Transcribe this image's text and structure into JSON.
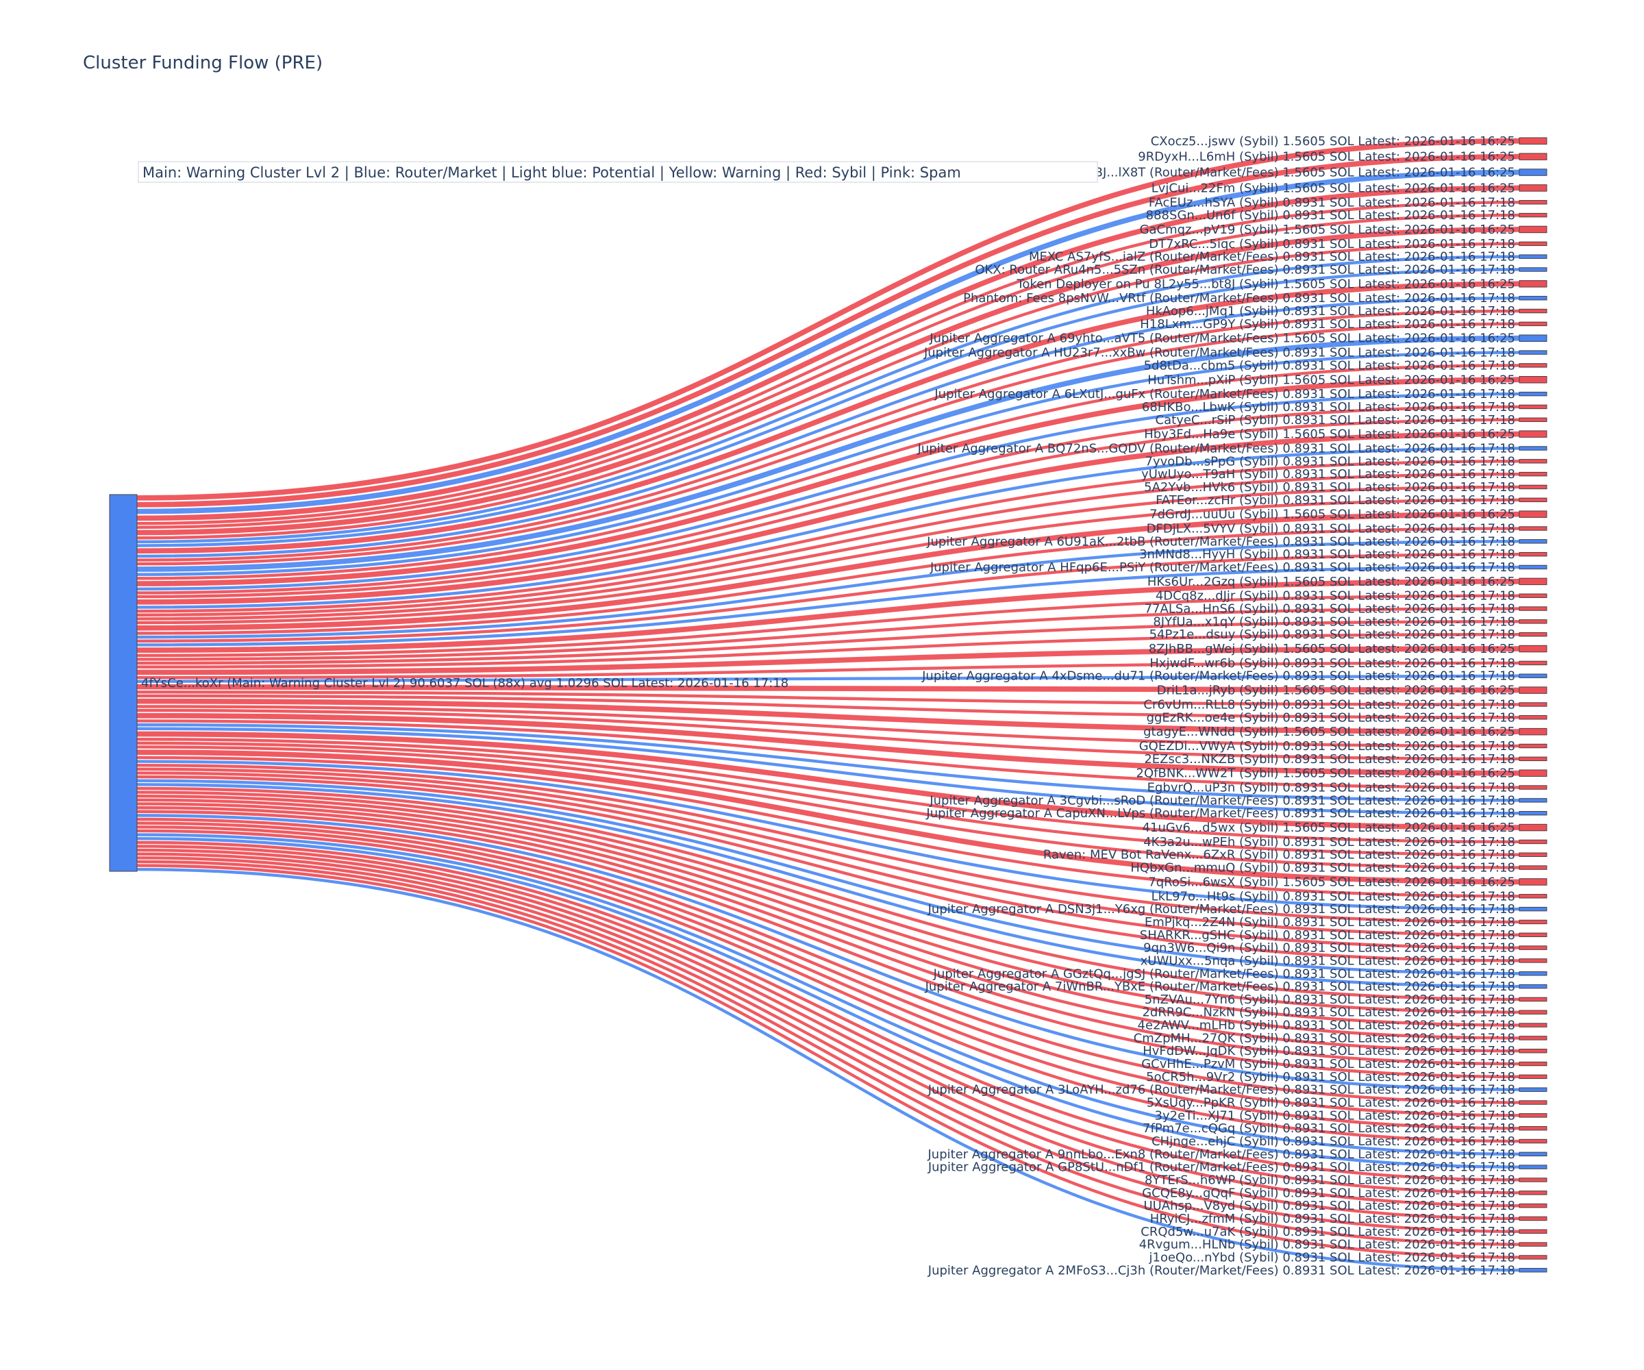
{
  "chart_data": {
    "type": "sankey",
    "title": "Cluster Funding Flow (PRE)",
    "legend_note": "Main: Warning Cluster Lvl 2  |  Blue: Router/Market | Light blue: Potential | Yellow: Warning | Red: Sybil | Pink: Spam",
    "colors": {
      "router": "#4a84f0",
      "sybil": "#ee4f57",
      "link_router": "#5b92f3",
      "link_sybil": "#ef5a61",
      "text": "#2a3f5f"
    },
    "source": {
      "label": "4fYsCe...koXr (Main: Warning Cluster Lvl 2) 90.6037 SOL (88x) avg 1.0296 SOL Latest: 2026-01-16 17:18",
      "value": 90.6037,
      "category": "router"
    },
    "targets": [
      {
        "label": "CXocz5...jswv (Sybil) 1.5605 SOL Latest: 2026-01-16 16:25",
        "value": 1.5605,
        "category": "sybil"
      },
      {
        "label": "9RDyxH...L6mH (Sybil) 1.5605 SOL Latest: 2026-01-16 16:25",
        "value": 1.5605,
        "category": "sybil"
      },
      {
        "label": "Jupiter Aggregator A 6h9nBJ...lX8T (Router/Market/Fees) 1.5605 SOL Latest: 2026-01-16 16:25",
        "value": 1.5605,
        "category": "router"
      },
      {
        "label": "LvjCui...22Fm (Sybil) 1.5605 SOL Latest: 2026-01-16 16:25",
        "value": 1.5605,
        "category": "sybil"
      },
      {
        "label": "FAcEUz...hSYA (Sybil) 0.8931 SOL Latest: 2026-01-16 17:18",
        "value": 0.8931,
        "category": "sybil"
      },
      {
        "label": "888SGn...Un6f (Sybil) 0.8931 SOL Latest: 2026-01-16 17:18",
        "value": 0.8931,
        "category": "sybil"
      },
      {
        "label": "GaCmqz...pV19 (Sybil) 1.5605 SOL Latest: 2026-01-16 16:25",
        "value": 1.5605,
        "category": "sybil"
      },
      {
        "label": "DT7xRC...5iqc (Sybil) 0.8931 SOL Latest: 2026-01-16 17:18",
        "value": 0.8931,
        "category": "sybil"
      },
      {
        "label": "MEXC AS7yfS...ialZ (Router/Market/Fees) 0.8931 SOL Latest: 2026-01-16 17:18",
        "value": 0.8931,
        "category": "router"
      },
      {
        "label": "OKX: Router ARu4n5...5SZn (Router/Market/Fees) 0.8931 SOL Latest: 2026-01-16 17:18",
        "value": 0.8931,
        "category": "router"
      },
      {
        "label": "Token Deployer on Pu 8L2y55...bt8J (Sybil) 1.5605 SOL Latest: 2026-01-16 16:25",
        "value": 1.5605,
        "category": "sybil"
      },
      {
        "label": "Phantom: Fees 8psNvW...VRtf (Router/Market/Fees) 0.8931 SOL Latest: 2026-01-16 17:18",
        "value": 0.8931,
        "category": "router"
      },
      {
        "label": "HkAop6...jMq1 (Sybil) 0.8931 SOL Latest: 2026-01-16 17:18",
        "value": 0.8931,
        "category": "sybil"
      },
      {
        "label": "H18Lxm...GP9Y (Sybil) 0.8931 SOL Latest: 2026-01-16 17:18",
        "value": 0.8931,
        "category": "sybil"
      },
      {
        "label": "Jupiter Aggregator A 69yhto...aVT5 (Router/Market/Fees) 1.5605 SOL Latest: 2026-01-16 16:25",
        "value": 1.5605,
        "category": "router"
      },
      {
        "label": "Jupiter Aggregator A HU23r7...xxBw (Router/Market/Fees) 0.8931 SOL Latest: 2026-01-16 17:18",
        "value": 0.8931,
        "category": "router"
      },
      {
        "label": "5d8tDa...cbm5 (Sybil) 0.8931 SOL Latest: 2026-01-16 17:18",
        "value": 0.8931,
        "category": "sybil"
      },
      {
        "label": "HuTshm...pXiP (Sybil) 1.5605 SOL Latest: 2026-01-16 16:25",
        "value": 1.5605,
        "category": "sybil"
      },
      {
        "label": "Jupiter Aggregator A 6LXutJ...guFx (Router/Market/Fees) 0.8931 SOL Latest: 2026-01-16 17:18",
        "value": 0.8931,
        "category": "router"
      },
      {
        "label": "68HKBo...LbwK (Sybil) 0.8931 SOL Latest: 2026-01-16 17:18",
        "value": 0.8931,
        "category": "sybil"
      },
      {
        "label": "CatyeC...rSiP (Sybil) 0.8931 SOL Latest: 2026-01-16 17:18",
        "value": 0.8931,
        "category": "sybil"
      },
      {
        "label": "Hby3Fd...Ha9e (Sybil) 1.5605 SOL Latest: 2026-01-16 16:25",
        "value": 1.5605,
        "category": "sybil"
      },
      {
        "label": "Jupiter Aggregator A BQ72nS...GQDV (Router/Market/Fees) 0.8931 SOL Latest: 2026-01-16 17:18",
        "value": 0.8931,
        "category": "router"
      },
      {
        "label": "7yvoDb...sPpG (Sybil) 0.8931 SOL Latest: 2026-01-16 17:18",
        "value": 0.8931,
        "category": "sybil"
      },
      {
        "label": "yUwUyo...T9aH (Sybil) 0.8931 SOL Latest: 2026-01-16 17:18",
        "value": 0.8931,
        "category": "sybil"
      },
      {
        "label": "5A2Yvb...HVk6 (Sybil) 0.8931 SOL Latest: 2026-01-16 17:18",
        "value": 0.8931,
        "category": "sybil"
      },
      {
        "label": "FATEor...zcHr (Sybil) 0.8931 SOL Latest: 2026-01-16 17:18",
        "value": 0.8931,
        "category": "sybil"
      },
      {
        "label": "7dGrdJ...uuUu (Sybil) 1.5605 SOL Latest: 2026-01-16 16:25",
        "value": 1.5605,
        "category": "sybil"
      },
      {
        "label": "DFDjLX...5VYV (Sybil) 0.8931 SOL Latest: 2026-01-16 17:18",
        "value": 0.8931,
        "category": "sybil"
      },
      {
        "label": "Jupiter Aggregator A 6U91aK...2tbB (Router/Market/Fees) 0.8931 SOL Latest: 2026-01-16 17:18",
        "value": 0.8931,
        "category": "router"
      },
      {
        "label": "3nMNd8...HyyH (Sybil) 0.8931 SOL Latest: 2026-01-16 17:18",
        "value": 0.8931,
        "category": "sybil"
      },
      {
        "label": "Jupiter Aggregator A HFqp6E...PSiY (Router/Market/Fees) 0.8931 SOL Latest: 2026-01-16 17:18",
        "value": 0.8931,
        "category": "router"
      },
      {
        "label": "HKs6Ur...2Gzq (Sybil) 1.5605 SOL Latest: 2026-01-16 16:25",
        "value": 1.5605,
        "category": "sybil"
      },
      {
        "label": "4DCq8z...dJjr (Sybil) 0.8931 SOL Latest: 2026-01-16 17:18",
        "value": 0.8931,
        "category": "sybil"
      },
      {
        "label": "77ALSa...HnS6 (Sybil) 0.8931 SOL Latest: 2026-01-16 17:18",
        "value": 0.8931,
        "category": "sybil"
      },
      {
        "label": "8JYfUa...x1qY (Sybil) 0.8931 SOL Latest: 2026-01-16 17:18",
        "value": 0.8931,
        "category": "sybil"
      },
      {
        "label": "54Pz1e...dsuy (Sybil) 0.8931 SOL Latest: 2026-01-16 17:18",
        "value": 0.8931,
        "category": "sybil"
      },
      {
        "label": "8ZJhBB...gWej (Sybil) 1.5605 SOL Latest: 2026-01-16 16:25",
        "value": 1.5605,
        "category": "sybil"
      },
      {
        "label": "HxjwdF...wr6b (Sybil) 0.8931 SOL Latest: 2026-01-16 17:18",
        "value": 0.8931,
        "category": "sybil"
      },
      {
        "label": "Jupiter Aggregator A 4xDsme...du71 (Router/Market/Fees) 0.8931 SOL Latest: 2026-01-16 17:18",
        "value": 0.8931,
        "category": "router"
      },
      {
        "label": "DriL1a...jRyb (Sybil) 1.5605 SOL Latest: 2026-01-16 16:25",
        "value": 1.5605,
        "category": "sybil"
      },
      {
        "label": "Cr6vUm...RLL8 (Sybil) 0.8931 SOL Latest: 2026-01-16 17:18",
        "value": 0.8931,
        "category": "sybil"
      },
      {
        "label": "ggEzRK...oe4e (Sybil) 0.8931 SOL Latest: 2026-01-16 17:18",
        "value": 0.8931,
        "category": "sybil"
      },
      {
        "label": "gtagyE...WNdd (Sybil) 1.5605 SOL Latest: 2026-01-16 16:25",
        "value": 1.5605,
        "category": "sybil"
      },
      {
        "label": "GQEZDi...VWyA (Sybil) 0.8931 SOL Latest: 2026-01-16 17:18",
        "value": 0.8931,
        "category": "sybil"
      },
      {
        "label": "2EZsc3...NKZB (Sybil) 0.8931 SOL Latest: 2026-01-16 17:18",
        "value": 0.8931,
        "category": "sybil"
      },
      {
        "label": "2QfBNK...WW2T (Sybil) 1.5605 SOL Latest: 2026-01-16 16:25",
        "value": 1.5605,
        "category": "sybil"
      },
      {
        "label": "EgbvrQ...uP3n (Sybil) 0.8931 SOL Latest: 2026-01-16 17:18",
        "value": 0.8931,
        "category": "sybil"
      },
      {
        "label": "Jupiter Aggregator A 3Cgvbi...sRoD (Router/Market/Fees) 0.8931 SOL Latest: 2026-01-16 17:18",
        "value": 0.8931,
        "category": "router"
      },
      {
        "label": "Jupiter Aggregator A CapuXN...LVps (Router/Market/Fees) 0.8931 SOL Latest: 2026-01-16 17:18",
        "value": 0.8931,
        "category": "router"
      },
      {
        "label": "41uGv6...d5wx (Sybil) 1.5605 SOL Latest: 2026-01-16 16:25",
        "value": 1.5605,
        "category": "sybil"
      },
      {
        "label": "4K3a2u...wPEh (Sybil) 0.8931 SOL Latest: 2026-01-16 17:18",
        "value": 0.8931,
        "category": "sybil"
      },
      {
        "label": "Raven: MEV Bot RaVenx...6ZxR (Sybil) 0.8931 SOL Latest: 2026-01-16 17:18",
        "value": 0.8931,
        "category": "sybil"
      },
      {
        "label": "HQbxGn...mmuQ (Sybil) 0.8931 SOL Latest: 2026-01-16 17:18",
        "value": 0.8931,
        "category": "sybil"
      },
      {
        "label": "7qRoSi...6wsX (Sybil) 1.5605 SOL Latest: 2026-01-16 16:25",
        "value": 1.5605,
        "category": "sybil"
      },
      {
        "label": "LkL97o...Ht9s (Sybil) 0.8931 SOL Latest: 2026-01-16 17:18",
        "value": 0.8931,
        "category": "sybil"
      },
      {
        "label": "Jupiter Aggregator A DSN3j1...Y6xg (Router/Market/Fees) 0.8931 SOL Latest: 2026-01-16 17:18",
        "value": 0.8931,
        "category": "router"
      },
      {
        "label": "EmPjkq...2Z4N (Sybil) 0.8931 SOL Latest: 2026-01-16 17:18",
        "value": 0.8931,
        "category": "sybil"
      },
      {
        "label": "SHARKR...gSHC (Sybil) 0.8931 SOL Latest: 2026-01-16 17:18",
        "value": 0.8931,
        "category": "sybil"
      },
      {
        "label": "9qn3W6...Qi9n (Sybil) 0.8931 SOL Latest: 2026-01-16 17:18",
        "value": 0.8931,
        "category": "sybil"
      },
      {
        "label": "xUWUxx...5nqa (Sybil) 0.8931 SOL Latest: 2026-01-16 17:18",
        "value": 0.8931,
        "category": "sybil"
      },
      {
        "label": "Jupiter Aggregator A GGztQq...jgSJ (Router/Market/Fees) 0.8931 SOL Latest: 2026-01-16 17:18",
        "value": 0.8931,
        "category": "router"
      },
      {
        "label": "Jupiter Aggregator A 7iWnBR...YBxE (Router/Market/Fees) 0.8931 SOL Latest: 2026-01-16 17:18",
        "value": 0.8931,
        "category": "router"
      },
      {
        "label": "5nZVAu...7Yn6 (Sybil) 0.8931 SOL Latest: 2026-01-16 17:18",
        "value": 0.8931,
        "category": "sybil"
      },
      {
        "label": "2dRR9C...NzkN (Sybil) 0.8931 SOL Latest: 2026-01-16 17:18",
        "value": 0.8931,
        "category": "sybil"
      },
      {
        "label": "4e2AWV...mLHb (Sybil) 0.8931 SOL Latest: 2026-01-16 17:18",
        "value": 0.8931,
        "category": "sybil"
      },
      {
        "label": "CmZpMH...27QK (Sybil) 0.8931 SOL Latest: 2026-01-16 17:18",
        "value": 0.8931,
        "category": "sybil"
      },
      {
        "label": "HvFdDW...JqDK (Sybil) 0.8931 SOL Latest: 2026-01-16 17:18",
        "value": 0.8931,
        "category": "sybil"
      },
      {
        "label": "GCvHhE...PzvM (Sybil) 0.8931 SOL Latest: 2026-01-16 17:18",
        "value": 0.8931,
        "category": "sybil"
      },
      {
        "label": "5oCR5h...9Vr2 (Sybil) 0.8931 SOL Latest: 2026-01-16 17:18",
        "value": 0.8931,
        "category": "sybil"
      },
      {
        "label": "Jupiter Aggregator A 3LoAYH...zd76 (Router/Market/Fees) 0.8931 SOL Latest: 2026-01-16 17:18",
        "value": 0.8931,
        "category": "router"
      },
      {
        "label": "5XsUqy...PpKR (Sybil) 0.8931 SOL Latest: 2026-01-16 17:18",
        "value": 0.8931,
        "category": "sybil"
      },
      {
        "label": "3y2eTi...XJ71 (Sybil) 0.8931 SOL Latest: 2026-01-16 17:18",
        "value": 0.8931,
        "category": "sybil"
      },
      {
        "label": "7fPm7e...cQGq (Sybil) 0.8931 SOL Latest: 2026-01-16 17:18",
        "value": 0.8931,
        "category": "sybil"
      },
      {
        "label": "CHjnge...ehjC (Sybil) 0.8931 SOL Latest: 2026-01-16 17:18",
        "value": 0.8931,
        "category": "sybil"
      },
      {
        "label": "Jupiter Aggregator A 9nnLbo...Exn8 (Router/Market/Fees) 0.8931 SOL Latest: 2026-01-16 17:18",
        "value": 0.8931,
        "category": "router"
      },
      {
        "label": "Jupiter Aggregator A GP8StU...nDf1 (Router/Market/Fees) 0.8931 SOL Latest: 2026-01-16 17:18",
        "value": 0.8931,
        "category": "router"
      },
      {
        "label": "8YTErS...h6WP (Sybil) 0.8931 SOL Latest: 2026-01-16 17:18",
        "value": 0.8931,
        "category": "sybil"
      },
      {
        "label": "GCQE8y...gQqF (Sybil) 0.8931 SOL Latest: 2026-01-16 17:18",
        "value": 0.8931,
        "category": "sybil"
      },
      {
        "label": "UUAhsp...V8yd (Sybil) 0.8931 SOL Latest: 2026-01-16 17:18",
        "value": 0.8931,
        "category": "sybil"
      },
      {
        "label": "HRyiCJ...zfmM (Sybil) 0.8931 SOL Latest: 2026-01-16 17:18",
        "value": 0.8931,
        "category": "sybil"
      },
      {
        "label": "CRQd5w...u7aK (Sybil) 0.8931 SOL Latest: 2026-01-16 17:18",
        "value": 0.8931,
        "category": "sybil"
      },
      {
        "label": "4Rvgum...HLNb (Sybil) 0.8931 SOL Latest: 2026-01-16 17:18",
        "value": 0.8931,
        "category": "sybil"
      },
      {
        "label": "j1oeQo...nYbd (Sybil) 0.8931 SOL Latest: 2026-01-16 17:18",
        "value": 0.8931,
        "category": "sybil"
      },
      {
        "label": "Jupiter Aggregator A 2MFoS3...Cj3h (Router/Market/Fees) 0.8931 SOL Latest: 2026-01-16 17:18",
        "value": 0.8931,
        "category": "router"
      }
    ]
  }
}
